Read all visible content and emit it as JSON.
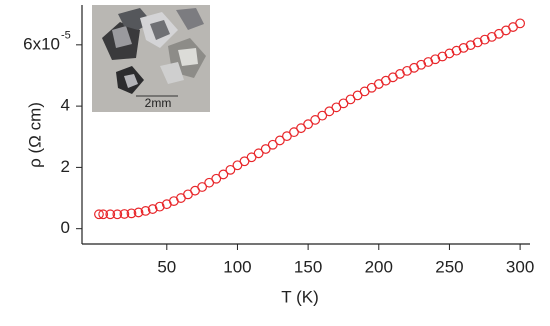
{
  "chart_data": {
    "type": "scatter",
    "xlabel": "T (K)",
    "ylabel": "ρ (Ω cm)",
    "x": [
      2,
      5,
      10,
      15,
      20,
      25,
      30,
      35,
      40,
      45,
      50,
      55,
      60,
      65,
      70,
      75,
      80,
      85,
      90,
      95,
      100,
      105,
      110,
      115,
      120,
      125,
      130,
      135,
      140,
      145,
      150,
      155,
      160,
      165,
      170,
      175,
      180,
      185,
      190,
      195,
      200,
      205,
      210,
      215,
      220,
      225,
      230,
      235,
      240,
      245,
      250,
      255,
      260,
      265,
      270,
      275,
      280,
      285,
      290,
      295,
      300
    ],
    "series": [
      {
        "color": "#e8262a",
        "values": [
          0.47,
          0.47,
          0.47,
          0.47,
          0.48,
          0.5,
          0.53,
          0.58,
          0.64,
          0.72,
          0.8,
          0.9,
          1.0,
          1.12,
          1.24,
          1.36,
          1.5,
          1.63,
          1.77,
          1.92,
          2.07,
          2.2,
          2.33,
          2.46,
          2.6,
          2.74,
          2.88,
          3.02,
          3.15,
          3.28,
          3.41,
          3.55,
          3.69,
          3.83,
          3.96,
          4.09,
          4.22,
          4.35,
          4.48,
          4.6,
          4.72,
          4.83,
          4.94,
          5.05,
          5.15,
          5.25,
          5.35,
          5.44,
          5.53,
          5.62,
          5.72,
          5.81,
          5.9,
          5.99,
          6.08,
          6.17,
          6.26,
          6.36,
          6.47,
          6.58,
          6.7
        ]
      }
    ],
    "xlim": [
      -10,
      307
    ],
    "xticks": [
      50,
      100,
      150,
      200,
      250,
      300
    ],
    "ylim": [
      -0.5,
      7.3
    ],
    "yticks": [
      0,
      2,
      4,
      {
        "value": 6,
        "label": "6x10"
      }
    ],
    "ytick_exponent": "-5",
    "inset_annotation": "2mm"
  }
}
